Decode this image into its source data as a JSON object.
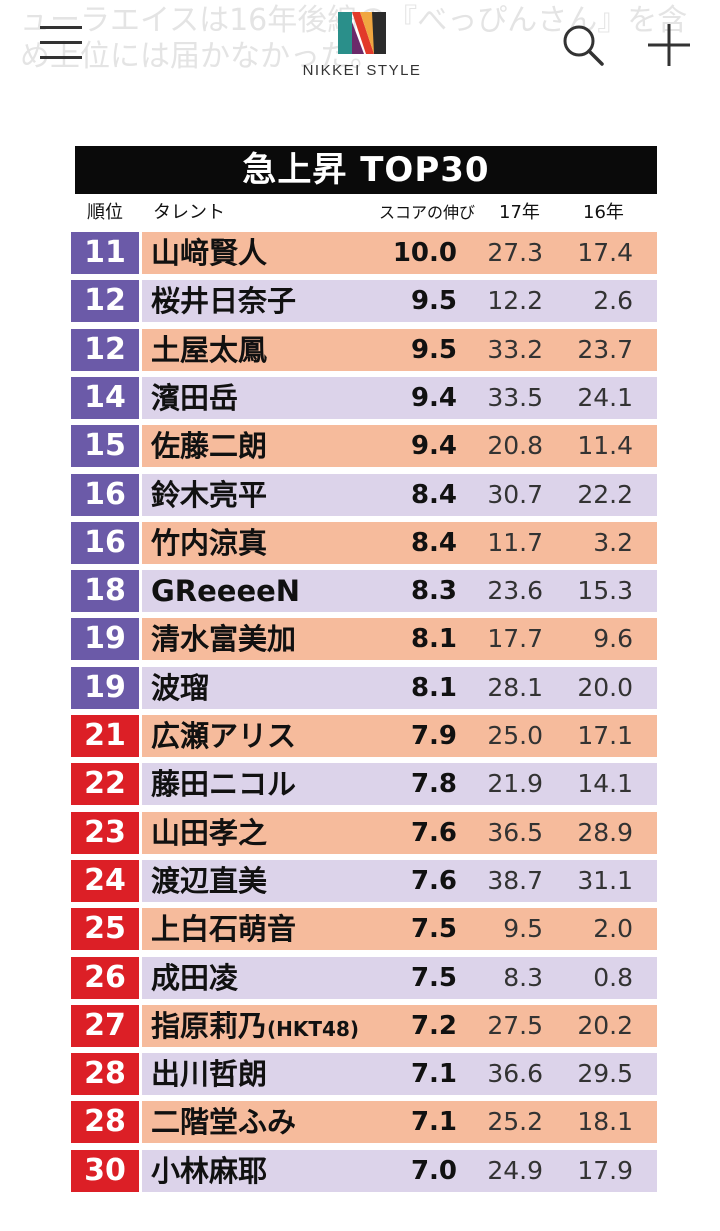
{
  "background_text": {
    "line1": "ューラエイスは16年後編の『べっぴんさん』を含",
    "line2": "め上位には届かなかった。"
  },
  "header": {
    "logo_text": "NIKKEI STYLE",
    "menu_icon": "hamburger-menu-icon",
    "search_icon": "search-icon",
    "add_icon": "plus-icon"
  },
  "table": {
    "title": "急上昇 TOP30",
    "columns": {
      "rank": "順位",
      "talent": "タレント",
      "score": "スコアの伸び",
      "y17": "17年",
      "y16": "16年"
    },
    "colors": {
      "rank_purple": "#6b5aa8",
      "rank_red": "#dc1f26",
      "band_orange": "#f6bb9c",
      "band_lavender": "#dcd3ea",
      "title_bg": "#0a0a0a"
    },
    "rows": [
      {
        "rank": "11",
        "name": "山﨑賢人",
        "suffix": "",
        "score": "10.0",
        "y17": "27.3",
        "y16": "17.4",
        "rank_color": "purple",
        "band": "orange"
      },
      {
        "rank": "12",
        "name": "桜井日奈子",
        "suffix": "",
        "score": "9.5",
        "y17": "12.2",
        "y16": "2.6",
        "rank_color": "purple",
        "band": "lavender"
      },
      {
        "rank": "12",
        "name": "土屋太鳳",
        "suffix": "",
        "score": "9.5",
        "y17": "33.2",
        "y16": "23.7",
        "rank_color": "purple",
        "band": "orange"
      },
      {
        "rank": "14",
        "name": "濱田岳",
        "suffix": "",
        "score": "9.4",
        "y17": "33.5",
        "y16": "24.1",
        "rank_color": "purple",
        "band": "lavender"
      },
      {
        "rank": "15",
        "name": "佐藤二朗",
        "suffix": "",
        "score": "9.4",
        "y17": "20.8",
        "y16": "11.4",
        "rank_color": "purple",
        "band": "orange"
      },
      {
        "rank": "16",
        "name": "鈴木亮平",
        "suffix": "",
        "score": "8.4",
        "y17": "30.7",
        "y16": "22.2",
        "rank_color": "purple",
        "band": "lavender"
      },
      {
        "rank": "16",
        "name": "竹内涼真",
        "suffix": "",
        "score": "8.4",
        "y17": "11.7",
        "y16": "3.2",
        "rank_color": "purple",
        "band": "orange"
      },
      {
        "rank": "18",
        "name": "GReeeeN",
        "suffix": "",
        "score": "8.3",
        "y17": "23.6",
        "y16": "15.3",
        "rank_color": "purple",
        "band": "lavender"
      },
      {
        "rank": "19",
        "name": "清水富美加",
        "suffix": "",
        "score": "8.1",
        "y17": "17.7",
        "y16": "9.6",
        "rank_color": "purple",
        "band": "orange"
      },
      {
        "rank": "19",
        "name": "波瑠",
        "suffix": "",
        "score": "8.1",
        "y17": "28.1",
        "y16": "20.0",
        "rank_color": "purple",
        "band": "lavender"
      },
      {
        "rank": "21",
        "name": "広瀬アリス",
        "suffix": "",
        "score": "7.9",
        "y17": "25.0",
        "y16": "17.1",
        "rank_color": "red",
        "band": "orange"
      },
      {
        "rank": "22",
        "name": "藤田ニコル",
        "suffix": "",
        "score": "7.8",
        "y17": "21.9",
        "y16": "14.1",
        "rank_color": "red",
        "band": "lavender"
      },
      {
        "rank": "23",
        "name": "山田孝之",
        "suffix": "",
        "score": "7.6",
        "y17": "36.5",
        "y16": "28.9",
        "rank_color": "red",
        "band": "orange"
      },
      {
        "rank": "24",
        "name": "渡辺直美",
        "suffix": "",
        "score": "7.6",
        "y17": "38.7",
        "y16": "31.1",
        "rank_color": "red",
        "band": "lavender"
      },
      {
        "rank": "25",
        "name": "上白石萌音",
        "suffix": "",
        "score": "7.5",
        "y17": "9.5",
        "y16": "2.0",
        "rank_color": "red",
        "band": "orange"
      },
      {
        "rank": "26",
        "name": "成田凌",
        "suffix": "",
        "score": "7.5",
        "y17": "8.3",
        "y16": "0.8",
        "rank_color": "red",
        "band": "lavender"
      },
      {
        "rank": "27",
        "name": "指原莉乃",
        "suffix": "(HKT48)",
        "score": "7.2",
        "y17": "27.5",
        "y16": "20.2",
        "rank_color": "red",
        "band": "orange"
      },
      {
        "rank": "28",
        "name": "出川哲朗",
        "suffix": "",
        "score": "7.1",
        "y17": "36.6",
        "y16": "29.5",
        "rank_color": "red",
        "band": "lavender"
      },
      {
        "rank": "28",
        "name": "二階堂ふみ",
        "suffix": "",
        "score": "7.1",
        "y17": "25.2",
        "y16": "18.1",
        "rank_color": "red",
        "band": "orange"
      },
      {
        "rank": "30",
        "name": "小林麻耶",
        "suffix": "",
        "score": "7.0",
        "y17": "24.9",
        "y16": "17.9",
        "rank_color": "red",
        "band": "lavender"
      }
    ]
  }
}
